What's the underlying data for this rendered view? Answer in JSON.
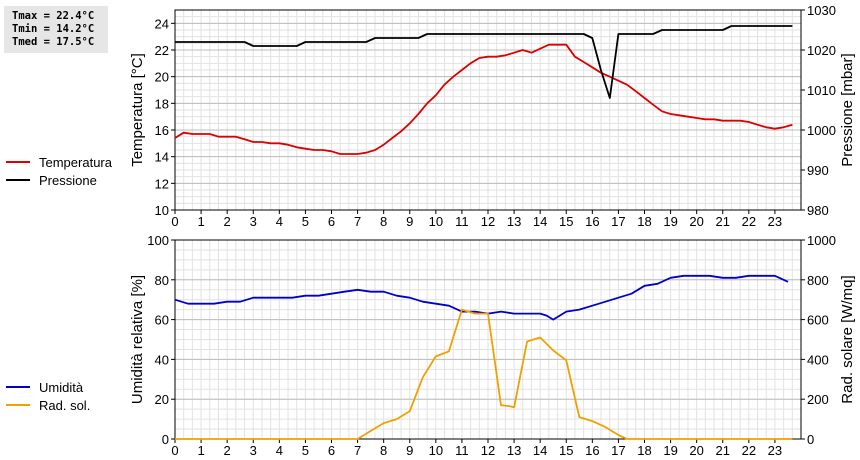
{
  "stats": {
    "tmax": "Tmax = 22.4°C",
    "tmin": "Tmin = 14.2°C",
    "tmed": "Tmed = 17.5°C"
  },
  "chart_data": [
    {
      "type": "line",
      "x_ticks": [
        "0",
        "1",
        "2",
        "3",
        "4",
        "5",
        "6",
        "7",
        "8",
        "9",
        "10",
        "11",
        "12",
        "13",
        "14",
        "15",
        "16",
        "17",
        "18",
        "19",
        "20",
        "21",
        "22",
        "23"
      ],
      "xlim": [
        0,
        24
      ],
      "ylabel": "Temperatura [°C]",
      "ylim": [
        10,
        25
      ],
      "y_ticks": [
        10,
        12,
        14,
        16,
        18,
        20,
        22,
        24
      ],
      "y2label": "Pressione [mbar]",
      "y2lim": [
        980,
        1030
      ],
      "y2_ticks": [
        980,
        990,
        1000,
        1010,
        1020,
        1030
      ],
      "grid": true,
      "legend": "left",
      "series": [
        {
          "name": "Temperatura",
          "axis": "left",
          "color": "#dd0000",
          "x": [
            0,
            0.33,
            0.67,
            1,
            1.33,
            1.67,
            2,
            2.33,
            2.67,
            3,
            3.33,
            3.67,
            4,
            4.33,
            4.67,
            5,
            5.33,
            5.67,
            6,
            6.33,
            6.67,
            7,
            7.33,
            7.67,
            8,
            8.33,
            8.67,
            9,
            9.33,
            9.67,
            10,
            10.33,
            10.67,
            11,
            11.33,
            11.67,
            12,
            12.33,
            12.67,
            13,
            13.33,
            13.67,
            14,
            14.33,
            14.67,
            15,
            15.33,
            15.67,
            16,
            16.33,
            16.67,
            17,
            17.33,
            17.67,
            18,
            18.33,
            18.67,
            19,
            19.33,
            19.67,
            20,
            20.33,
            20.67,
            21,
            21.33,
            21.67,
            22,
            22.33,
            22.67,
            23,
            23.33,
            23.67
          ],
          "y": [
            15.4,
            15.8,
            15.7,
            15.7,
            15.7,
            15.5,
            15.5,
            15.5,
            15.3,
            15.1,
            15.1,
            15.0,
            15.0,
            14.9,
            14.7,
            14.6,
            14.5,
            14.5,
            14.4,
            14.2,
            14.2,
            14.2,
            14.3,
            14.5,
            14.9,
            15.4,
            15.9,
            16.5,
            17.2,
            18.0,
            18.6,
            19.4,
            20.0,
            20.5,
            21.0,
            21.4,
            21.5,
            21.5,
            21.6,
            21.8,
            22.0,
            21.8,
            22.1,
            22.4,
            22.4,
            22.4,
            21.5,
            21.1,
            20.7,
            20.3,
            20.0,
            19.7,
            19.4,
            18.9,
            18.4,
            17.9,
            17.4,
            17.2,
            17.1,
            17.0,
            16.9,
            16.8,
            16.8,
            16.7,
            16.7,
            16.7,
            16.6,
            16.4,
            16.2,
            16.1,
            16.2,
            16.4
          ]
        },
        {
          "name": "Pressione",
          "axis": "right",
          "color": "#000000",
          "x": [
            0,
            0.5,
            1,
            1.5,
            2,
            2.5,
            2.67,
            3,
            3.5,
            4,
            4.5,
            4.67,
            5,
            5.5,
            6,
            6.5,
            7,
            7.33,
            7.67,
            8,
            8.5,
            9,
            9.33,
            9.67,
            10,
            11,
            12,
            13,
            14,
            15,
            15.67,
            16,
            16.33,
            16.67,
            17,
            17.5,
            18,
            18.33,
            18.67,
            19,
            19.5,
            20,
            20.5,
            21,
            21.33,
            22,
            22.5,
            23,
            23.67
          ],
          "y": [
            1022,
            1022,
            1022,
            1022,
            1022,
            1022,
            1022,
            1021,
            1021,
            1021,
            1021,
            1021,
            1022,
            1022,
            1022,
            1022,
            1022,
            1022,
            1023,
            1023,
            1023,
            1023,
            1023,
            1024,
            1024,
            1024,
            1024,
            1024,
            1024,
            1024,
            1024,
            1023,
            1015,
            1008,
            1024,
            1024,
            1024,
            1024,
            1025,
            1025,
            1025,
            1025,
            1025,
            1025,
            1026,
            1026,
            1026,
            1026,
            1026
          ]
        }
      ]
    },
    {
      "type": "line",
      "x_ticks": [
        "0",
        "1",
        "2",
        "3",
        "4",
        "5",
        "6",
        "7",
        "8",
        "9",
        "10",
        "11",
        "12",
        "13",
        "14",
        "15",
        "16",
        "17",
        "18",
        "19",
        "20",
        "21",
        "22",
        "23"
      ],
      "xlim": [
        0,
        24
      ],
      "ylabel": "Umidità relativa [%]",
      "ylim": [
        0,
        100
      ],
      "y_ticks": [
        0,
        20,
        40,
        60,
        80,
        100
      ],
      "y2label": "Rad. solare [W/mq]",
      "y2lim": [
        0,
        1000
      ],
      "y2_ticks": [
        0,
        200,
        400,
        600,
        800,
        1000
      ],
      "grid": true,
      "legend": "left",
      "series": [
        {
          "name": "Umidità",
          "axis": "left",
          "color": "#0000cc",
          "x": [
            0,
            0.5,
            1,
            1.5,
            2,
            2.5,
            3,
            3.5,
            4,
            4.5,
            5,
            5.5,
            6,
            6.5,
            7,
            7.5,
            8,
            8.5,
            9,
            9.5,
            10,
            10.5,
            11,
            11.5,
            12,
            12.5,
            13,
            13.5,
            14,
            14.25,
            14.5,
            15,
            15.5,
            16,
            16.5,
            17,
            17.5,
            18,
            18.5,
            19,
            19.5,
            20,
            20.5,
            21,
            21.5,
            22,
            22.5,
            23,
            23.5
          ],
          "y": [
            70,
            68,
            68,
            68,
            69,
            69,
            71,
            71,
            71,
            71,
            72,
            72,
            73,
            74,
            75,
            74,
            74,
            72,
            71,
            69,
            68,
            67,
            64,
            64,
            63,
            64,
            63,
            63,
            63,
            62,
            60,
            64,
            65,
            67,
            69,
            71,
            73,
            77,
            78,
            81,
            82,
            82,
            82,
            81,
            81,
            82,
            82,
            82,
            79
          ]
        },
        {
          "name": "Rad. sol.",
          "axis": "right",
          "color": "#f0a000",
          "x": [
            0,
            1,
            2,
            3,
            4,
            5,
            6,
            7,
            7.5,
            8,
            8.5,
            9,
            9.5,
            10,
            10.5,
            11,
            11.5,
            12,
            12.5,
            12.83,
            13,
            13.5,
            14,
            14.5,
            15,
            15.5,
            16,
            16.5,
            17,
            17.33,
            18,
            19,
            20,
            21,
            22,
            23,
            23.67
          ],
          "y": [
            0,
            0,
            0,
            0,
            0,
            0,
            0,
            0,
            40,
            80,
            100,
            140,
            310,
            415,
            440,
            650,
            630,
            630,
            170,
            165,
            160,
            490,
            510,
            445,
            395,
            110,
            90,
            60,
            20,
            0,
            0,
            0,
            0,
            0,
            0,
            0,
            0
          ]
        }
      ]
    }
  ]
}
